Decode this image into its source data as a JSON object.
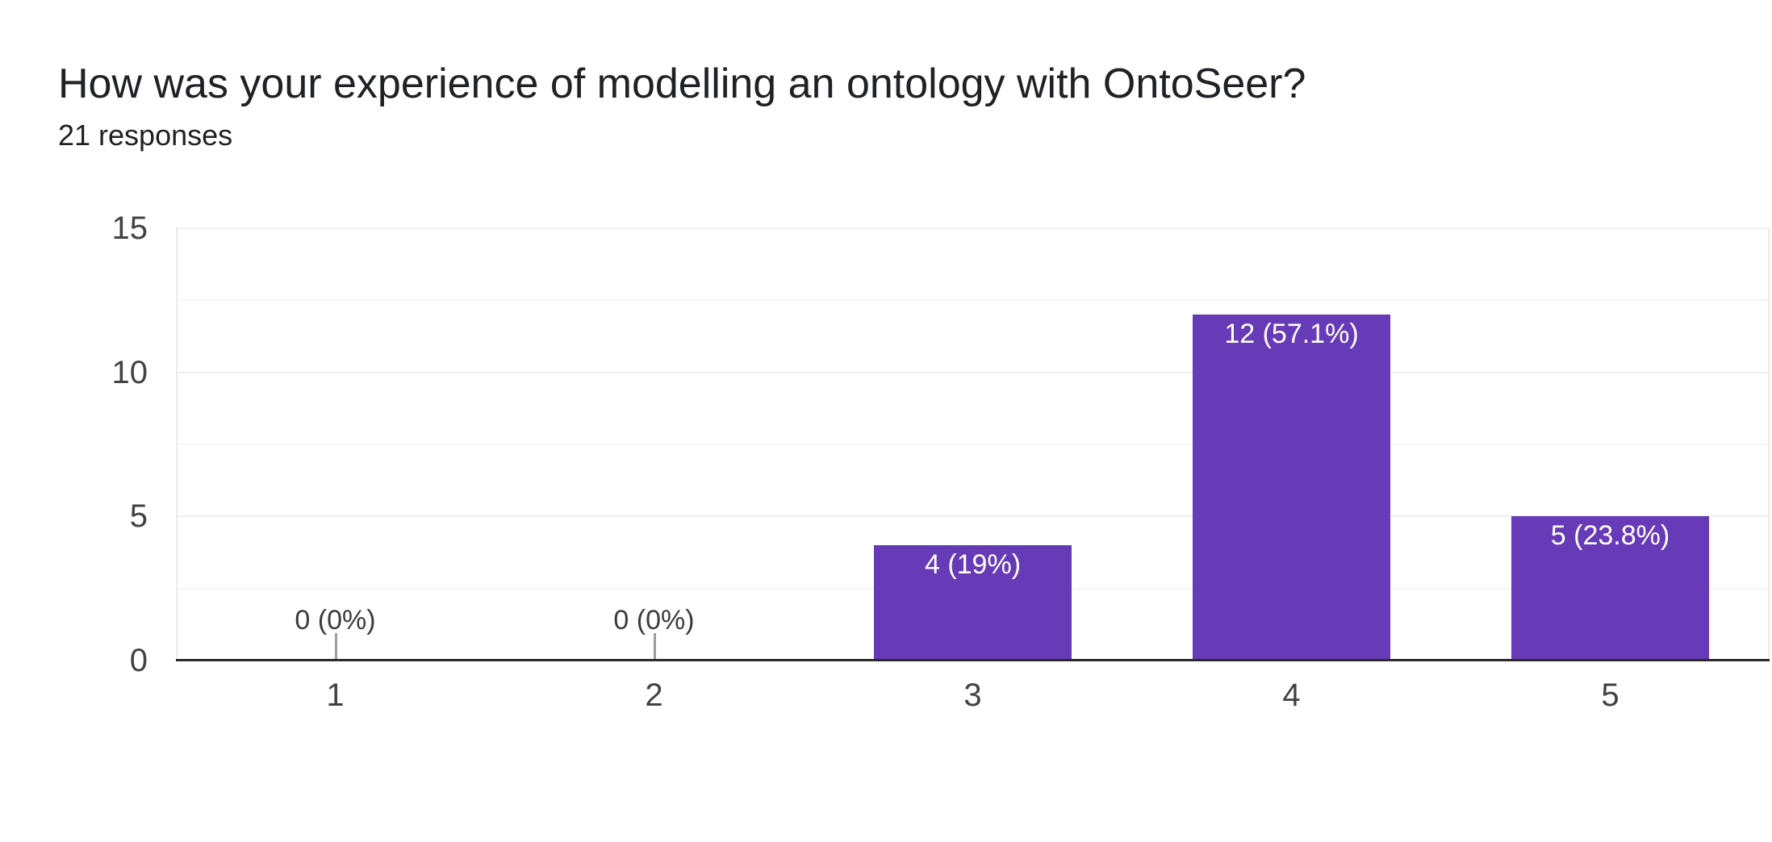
{
  "header": {
    "title": "How was your experience of modelling an ontology with OntoSeer?",
    "subtitle": "21 responses"
  },
  "chart_data": {
    "type": "bar",
    "title": "How was your experience of modelling an ontology with OntoSeer?",
    "subtitle": "21 responses",
    "categories": [
      "1",
      "2",
      "3",
      "4",
      "5"
    ],
    "values": [
      0,
      0,
      4,
      12,
      5
    ],
    "annotations": [
      "0 (0%)",
      "0 (0%)",
      "4 (19%)",
      "12 (57.1%)",
      "5 (23.8%)"
    ],
    "total_responses": 21,
    "xlabel": "",
    "ylabel": "",
    "ylim": [
      0,
      15
    ],
    "yticks": [
      0,
      5,
      10,
      15
    ],
    "minor_gridlines": [
      2.5,
      7.5,
      12.5
    ],
    "grid": true,
    "legend": "none"
  },
  "colors": {
    "bar": "#673ab7",
    "bar_label": "#ffffff",
    "zero_label": "#3c3c3c",
    "zero_stub": "#9e9e9e",
    "major_gridline": "#efefef",
    "minor_gridline": "#f6f6f6",
    "plot_border": "#ececec",
    "baseline": "#2b2b2b",
    "tick_text": "#424242",
    "title_text": "#202124"
  }
}
